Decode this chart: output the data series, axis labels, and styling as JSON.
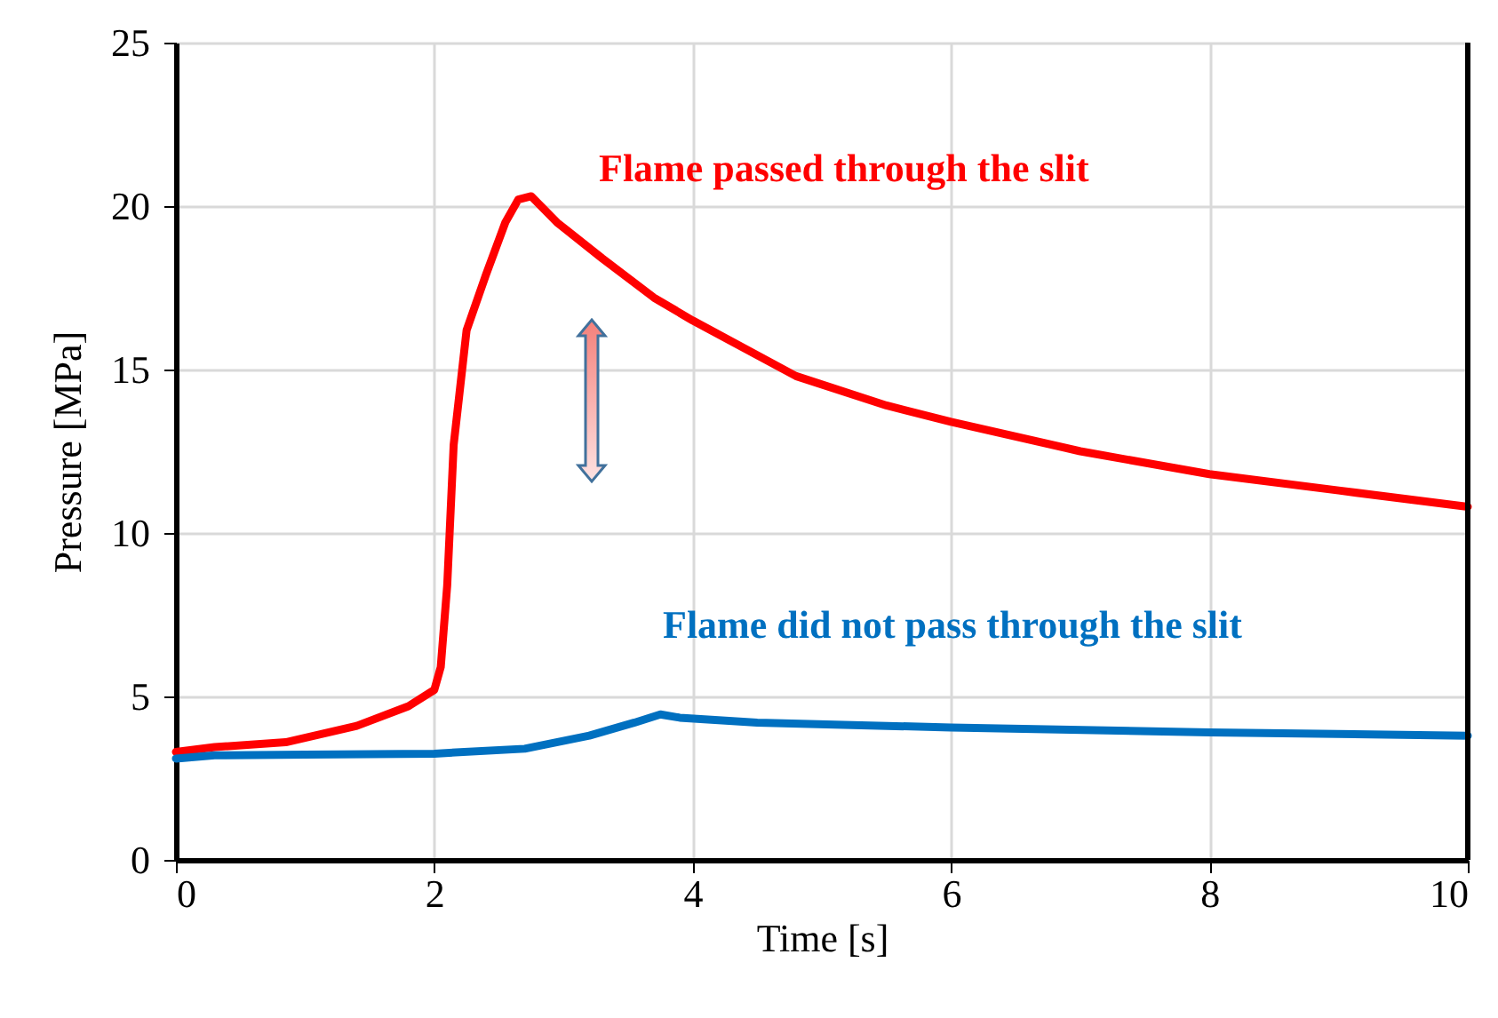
{
  "chart_data": {
    "type": "line",
    "xlabel": "Time [s]",
    "ylabel": "Pressure [MPa]",
    "xlim": [
      0,
      10
    ],
    "xticks": [
      0,
      2,
      4,
      6,
      8,
      10
    ],
    "ylim": [
      0,
      25
    ],
    "yticks": [
      0,
      5,
      10,
      15,
      20,
      25
    ],
    "grid": true,
    "marker": "none",
    "line_style": "solid",
    "series": [
      {
        "color": "#ff0000",
        "x": [
          0,
          0.3,
          0.85,
          1.4,
          1.8,
          2.0,
          2.05,
          2.1,
          2.15,
          2.25,
          2.4,
          2.55,
          2.65,
          2.75,
          2.95,
          3.3,
          3.7,
          4.0,
          4.8,
          5.5,
          6.0,
          7.0,
          8.0,
          9.0,
          10.0
        ],
        "values": [
          3.3,
          3.45,
          3.6,
          4.1,
          4.7,
          5.2,
          5.9,
          8.4,
          12.7,
          16.2,
          17.9,
          19.5,
          20.2,
          20.3,
          19.5,
          18.4,
          17.2,
          16.5,
          14.8,
          13.9,
          13.4,
          12.5,
          11.8,
          11.3,
          10.8
        ]
      },
      {
        "color": "#0070c0",
        "x": [
          0,
          0.3,
          1.0,
          2.0,
          2.7,
          3.2,
          3.55,
          3.75,
          3.9,
          4.5,
          6.0,
          8.0,
          10.0
        ],
        "values": [
          3.1,
          3.2,
          3.22,
          3.25,
          3.4,
          3.8,
          4.2,
          4.45,
          4.35,
          4.2,
          4.05,
          3.9,
          3.8
        ]
      }
    ],
    "annotations": [
      "Flame passed through the slit",
      "Flame did not pass through the slit"
    ]
  }
}
